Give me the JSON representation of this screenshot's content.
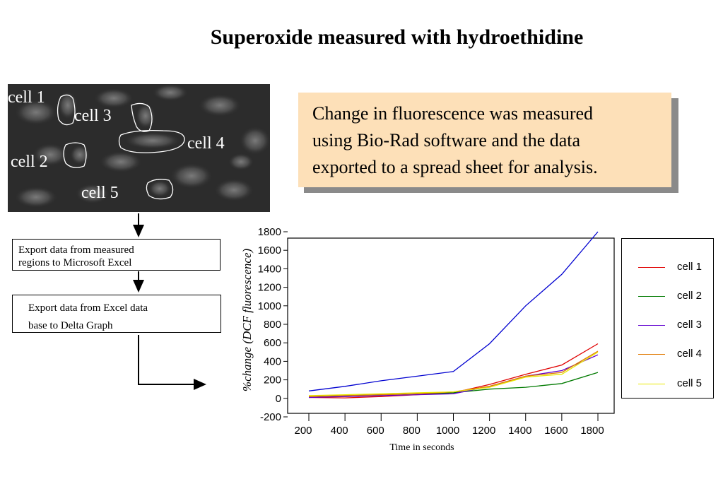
{
  "title": "Superoxide measured with hydroethidine",
  "micrograph": {
    "labels": [
      "cell 1",
      "cell 2",
      "cell 3",
      "cell 4",
      "cell 5"
    ]
  },
  "note": {
    "lines": [
      "Change in fluorescence was measured",
      "using Bio-Rad software and the data",
      "exported to a spread sheet for analysis."
    ]
  },
  "flow": {
    "step1": [
      "Export data from measured",
      "regions to Microsoft Excel"
    ],
    "step2": [
      "Export data from Excel data",
      "base to Delta Graph"
    ]
  },
  "chart_data": {
    "type": "line",
    "xlabel": "Time in seconds",
    "ylabel": "%change  (DCF fluorescence)",
    "ylim": [
      -200,
      1800
    ],
    "xlim": [
      200,
      1800
    ],
    "y_ticks": [
      -200,
      0,
      200,
      400,
      600,
      800,
      1000,
      1200,
      1400,
      1600,
      1800
    ],
    "x_ticks": [
      200,
      400,
      600,
      800,
      1000,
      1200,
      1400,
      1600,
      1800
    ],
    "grid": false,
    "legend_position": "right",
    "series": [
      {
        "name": "cell 1",
        "color": "#e00000",
        "x": [
          200,
          400,
          600,
          800,
          1000,
          1200,
          1400,
          1600,
          1800
        ],
        "y": [
          10,
          5,
          20,
          40,
          60,
          150,
          260,
          360,
          590
        ]
      },
      {
        "name": "cell 2",
        "color": "#007a00",
        "x": [
          200,
          400,
          600,
          800,
          1000,
          1200,
          1400,
          1600,
          1800
        ],
        "y": [
          20,
          30,
          40,
          50,
          60,
          100,
          120,
          160,
          280
        ]
      },
      {
        "name": "cell 3",
        "color": "#6000d0",
        "x": [
          200,
          400,
          600,
          800,
          1000,
          1200,
          1400,
          1600,
          1800
        ],
        "y": [
          10,
          20,
          30,
          40,
          50,
          130,
          240,
          300,
          470
        ]
      },
      {
        "name": "cell 4",
        "color": "#e07800",
        "x": [
          200,
          400,
          600,
          800,
          1000,
          1200,
          1400,
          1600,
          1800
        ],
        "y": [
          20,
          30,
          40,
          50,
          70,
          130,
          240,
          280,
          510
        ]
      },
      {
        "name": "cell 5",
        "color": "#e8e800",
        "x": [
          200,
          400,
          600,
          800,
          1000,
          1200,
          1400,
          1600,
          1800
        ],
        "y": [
          30,
          40,
          50,
          60,
          70,
          120,
          230,
          260,
          500
        ]
      },
      {
        "name": "",
        "color": "#0000d0",
        "x": [
          200,
          400,
          600,
          800,
          1000,
          1200,
          1400,
          1600,
          1800
        ],
        "y": [
          80,
          130,
          190,
          240,
          290,
          590,
          1000,
          1340,
          1800
        ]
      }
    ]
  }
}
